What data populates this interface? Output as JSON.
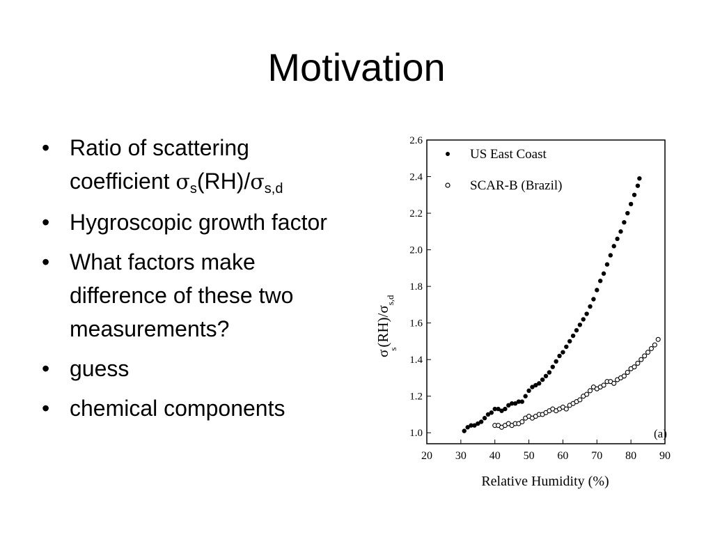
{
  "slide": {
    "title": "Motivation",
    "bullets": [
      {
        "pre": "Ratio of scattering coefficient ",
        "sym1": "σ",
        "sub1": "s",
        "mid": "(RH)/",
        "sym2": "σ",
        "sub2": "s,d"
      },
      {
        "text": "Hygroscopic growth factor"
      },
      {
        "text": "What factors make difference of these two measurements?"
      },
      {
        "text": "guess"
      },
      {
        "text": "chemical components"
      }
    ]
  },
  "chart_data": {
    "type": "scatter",
    "panel_label": "(a)",
    "xlabel": "Relative Humidity (%)",
    "ylabel": {
      "sym": "σ",
      "sub1": "s",
      "mid": "(RH)/σ",
      "sub2": "s,d"
    },
    "xlim": [
      20,
      90
    ],
    "ylim": [
      0.94,
      2.6
    ],
    "x_ticks": [
      "20",
      "30",
      "40",
      "50",
      "60",
      "70",
      "80",
      "90"
    ],
    "y_ticks": [
      "1.0",
      "1.2",
      "1.4",
      "1.6",
      "1.8",
      "2.0",
      "2.2",
      "2.4",
      "2.6"
    ],
    "legend_position": "top-left",
    "series": [
      {
        "name": "US East Coast",
        "marker": "filled",
        "points": [
          [
            31,
            1.01
          ],
          [
            32,
            1.03
          ],
          [
            33,
            1.04
          ],
          [
            34,
            1.04
          ],
          [
            35,
            1.05
          ],
          [
            36,
            1.06
          ],
          [
            37,
            1.08
          ],
          [
            38,
            1.1
          ],
          [
            39,
            1.11
          ],
          [
            40,
            1.13
          ],
          [
            41,
            1.13
          ],
          [
            42,
            1.12
          ],
          [
            43,
            1.13
          ],
          [
            44,
            1.15
          ],
          [
            45,
            1.16
          ],
          [
            46,
            1.16
          ],
          [
            47,
            1.17
          ],
          [
            48,
            1.17
          ],
          [
            49,
            1.2
          ],
          [
            50,
            1.23
          ],
          [
            51,
            1.25
          ],
          [
            52,
            1.26
          ],
          [
            53,
            1.27
          ],
          [
            54,
            1.29
          ],
          [
            55,
            1.31
          ],
          [
            56,
            1.33
          ],
          [
            57,
            1.36
          ],
          [
            58,
            1.39
          ],
          [
            59,
            1.42
          ],
          [
            60,
            1.44
          ],
          [
            61,
            1.47
          ],
          [
            62,
            1.5
          ],
          [
            63,
            1.53
          ],
          [
            64,
            1.56
          ],
          [
            65,
            1.59
          ],
          [
            66,
            1.62
          ],
          [
            67,
            1.65
          ],
          [
            68,
            1.69
          ],
          [
            69,
            1.73
          ],
          [
            70,
            1.78
          ],
          [
            71,
            1.83
          ],
          [
            72,
            1.87
          ],
          [
            73,
            1.92
          ],
          [
            74,
            1.97
          ],
          [
            75,
            2.02
          ],
          [
            76,
            2.06
          ],
          [
            77,
            2.1
          ],
          [
            78,
            2.15
          ],
          [
            79,
            2.2
          ],
          [
            80,
            2.25
          ],
          [
            81,
            2.3
          ],
          [
            82,
            2.35
          ],
          [
            82.5,
            2.39
          ]
        ]
      },
      {
        "name": "SCAR-B (Brazil)",
        "marker": "open",
        "points": [
          [
            40,
            1.04
          ],
          [
            41,
            1.04
          ],
          [
            42,
            1.03
          ],
          [
            43,
            1.04
          ],
          [
            44,
            1.05
          ],
          [
            45,
            1.04
          ],
          [
            46,
            1.05
          ],
          [
            47,
            1.05
          ],
          [
            48,
            1.06
          ],
          [
            49,
            1.08
          ],
          [
            50,
            1.09
          ],
          [
            51,
            1.08
          ],
          [
            52,
            1.09
          ],
          [
            53,
            1.1
          ],
          [
            54,
            1.1
          ],
          [
            55,
            1.11
          ],
          [
            56,
            1.12
          ],
          [
            57,
            1.13
          ],
          [
            58,
            1.12
          ],
          [
            59,
            1.13
          ],
          [
            60,
            1.14
          ],
          [
            61,
            1.13
          ],
          [
            62,
            1.15
          ],
          [
            63,
            1.16
          ],
          [
            64,
            1.17
          ],
          [
            65,
            1.18
          ],
          [
            66,
            1.2
          ],
          [
            67,
            1.21
          ],
          [
            68,
            1.23
          ],
          [
            69,
            1.25
          ],
          [
            70,
            1.24
          ],
          [
            71,
            1.25
          ],
          [
            72,
            1.26
          ],
          [
            73,
            1.28
          ],
          [
            74,
            1.28
          ],
          [
            75,
            1.27
          ],
          [
            76,
            1.29
          ],
          [
            77,
            1.3
          ],
          [
            78,
            1.31
          ],
          [
            79,
            1.33
          ],
          [
            80,
            1.35
          ],
          [
            81,
            1.36
          ],
          [
            82,
            1.38
          ],
          [
            83,
            1.4
          ],
          [
            84,
            1.42
          ],
          [
            85,
            1.44
          ],
          [
            86,
            1.46
          ],
          [
            87,
            1.48
          ],
          [
            88,
            1.51
          ]
        ]
      }
    ]
  }
}
